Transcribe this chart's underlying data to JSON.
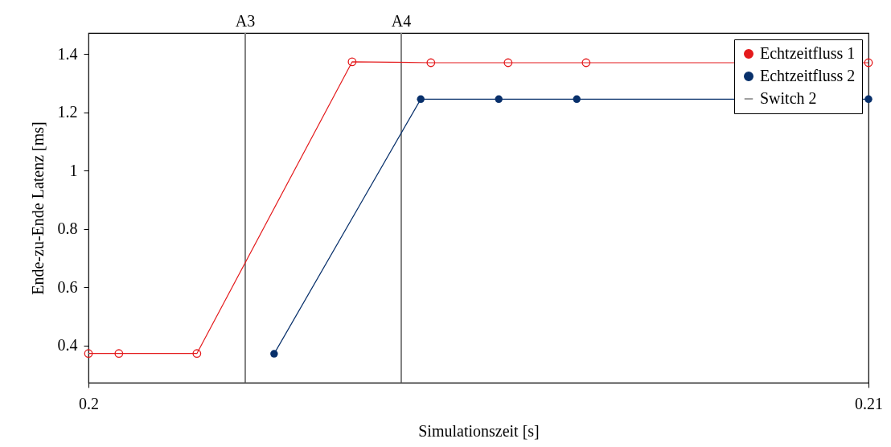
{
  "chart_data": {
    "type": "line",
    "xlabel": "Simulationszeit [s]",
    "ylabel": "Ende-zu-Ende Latenz [ms]",
    "xlim": [
      0.2,
      0.21
    ],
    "xticks": [
      0.2,
      0.21
    ],
    "ylim": [
      0.273,
      1.472
    ],
    "yticks": [
      0.4,
      0.6,
      0.8,
      1,
      1.2,
      1.4
    ],
    "grid": false,
    "legend": "top right",
    "marker": "circle",
    "line_style": "solid",
    "series": [
      {
        "name": "Echtzeitfluss 1",
        "color": "#e41a1c",
        "x": [
          0.2,
          0.20039,
          0.20139,
          0.20338,
          0.20439,
          0.20538,
          0.20638,
          0.21
        ],
        "values": [
          0.373,
          0.373,
          0.373,
          1.373,
          1.37,
          1.37,
          1.37,
          1.37
        ]
      },
      {
        "name": "Echtzeitfluss 2",
        "color": "#08306b",
        "x": [
          0.20238,
          0.20426,
          0.20526,
          0.20626,
          0.21
        ],
        "values": [
          0.372,
          1.245,
          1.245,
          1.245,
          1.245
        ]
      }
    ],
    "ref_lines": [
      {
        "axis": "x",
        "value": 0.20201,
        "label": "A3",
        "color": "#808080"
      },
      {
        "axis": "x",
        "value": 0.20401,
        "label": "A4",
        "color": "#808080"
      }
    ],
    "annotations": [
      "Switch 2"
    ]
  }
}
